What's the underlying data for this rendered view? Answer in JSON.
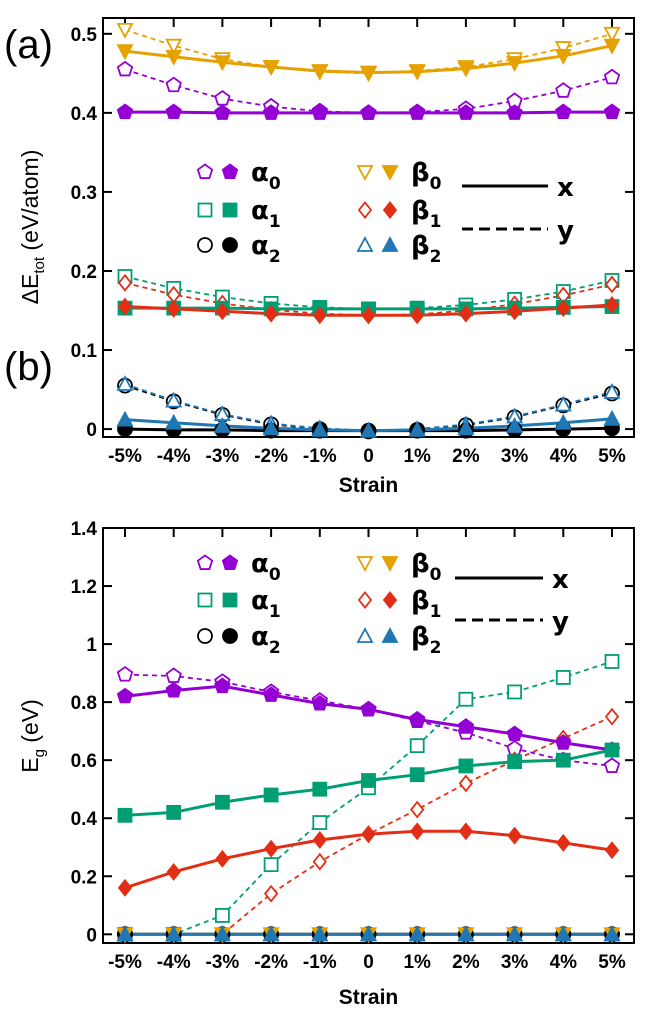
{
  "chart_data": [
    {
      "panel_label": "(a)",
      "type": "line",
      "ylabel_prefix": "ΔE",
      "ylabel_sub": "tot",
      "ylabel_suffix": " (eV/atom)",
      "xlabel": "Strain",
      "categories": [
        "-5%",
        "-4%",
        "-3%",
        "-2%",
        "-1%",
        "0",
        "1%",
        "2%",
        "3%",
        "4%",
        "5%"
      ],
      "ylim": [
        -0.01,
        0.52
      ],
      "yticks": [
        0,
        0.1,
        0.2,
        0.3,
        0.4,
        0.5
      ],
      "grid": false,
      "legend": {
        "entries": [
          {
            "greek": "α",
            "sub": "0"
          },
          {
            "greek": "α",
            "sub": "1"
          },
          {
            "greek": "α",
            "sub": "2"
          },
          {
            "greek": "β",
            "sub": "0"
          },
          {
            "greek": "β",
            "sub": "1"
          },
          {
            "greek": "β",
            "sub": "2"
          }
        ],
        "line_styles": [
          {
            "label": "x",
            "style": "solid"
          },
          {
            "label": "y",
            "style": "dashed"
          }
        ]
      },
      "series": [
        {
          "key": "α0-x",
          "color": "#9400D3",
          "marker": "pentagon",
          "style": "solid",
          "values": [
            0.401,
            0.401,
            0.4,
            0.4,
            0.4,
            0.4,
            0.4,
            0.4,
            0.4,
            0.401,
            0.401
          ]
        },
        {
          "key": "α0-y",
          "color": "#9400D3",
          "marker": "pentagon",
          "style": "dashed",
          "values": [
            0.455,
            0.435,
            0.418,
            0.408,
            0.402,
            0.4,
            0.401,
            0.405,
            0.415,
            0.428,
            0.445
          ]
        },
        {
          "key": "β0-x",
          "color": "#E5A100",
          "marker": "triangle-down",
          "style": "solid",
          "values": [
            0.478,
            0.471,
            0.464,
            0.458,
            0.453,
            0.451,
            0.452,
            0.456,
            0.463,
            0.472,
            0.485
          ]
        },
        {
          "key": "β0-y",
          "color": "#E5A100",
          "marker": "triangle-down",
          "style": "dashed",
          "values": [
            0.505,
            0.485,
            0.468,
            0.458,
            0.452,
            0.45,
            0.453,
            0.458,
            0.468,
            0.482,
            0.5
          ]
        },
        {
          "key": "α1-x",
          "color": "#009E73",
          "marker": "square",
          "style": "solid",
          "values": [
            0.153,
            0.153,
            0.153,
            0.152,
            0.152,
            0.152,
            0.152,
            0.152,
            0.153,
            0.154,
            0.155
          ]
        },
        {
          "key": "α1-y",
          "color": "#009E73",
          "marker": "square",
          "style": "dashed",
          "values": [
            0.193,
            0.178,
            0.167,
            0.159,
            0.154,
            0.152,
            0.153,
            0.157,
            0.164,
            0.174,
            0.188
          ]
        },
        {
          "key": "β1-x",
          "color": "#E32E16",
          "marker": "diamond",
          "style": "solid",
          "values": [
            0.155,
            0.152,
            0.149,
            0.146,
            0.144,
            0.144,
            0.144,
            0.146,
            0.149,
            0.153,
            0.157
          ]
        },
        {
          "key": "β1-y",
          "color": "#E32E16",
          "marker": "diamond",
          "style": "dashed",
          "values": [
            0.185,
            0.17,
            0.159,
            0.151,
            0.146,
            0.144,
            0.145,
            0.15,
            0.158,
            0.169,
            0.183
          ]
        },
        {
          "key": "α2-x",
          "color": "#000000",
          "marker": "circle",
          "style": "solid",
          "values": [
            0.0,
            -0.001,
            -0.001,
            -0.002,
            -0.002,
            -0.002,
            -0.002,
            -0.002,
            -0.001,
            0.0,
            0.001
          ]
        },
        {
          "key": "α2-y",
          "color": "#000000",
          "marker": "circle",
          "style": "dashed",
          "values": [
            0.055,
            0.035,
            0.018,
            0.006,
            0.0,
            -0.003,
            -0.001,
            0.005,
            0.015,
            0.03,
            0.045
          ]
        },
        {
          "key": "β2-x",
          "color": "#1F77B4",
          "marker": "triangle-up",
          "style": "solid",
          "values": [
            0.012,
            0.008,
            0.004,
            0.001,
            -0.001,
            -0.002,
            -0.001,
            0.001,
            0.004,
            0.008,
            0.013
          ]
        },
        {
          "key": "β2-y",
          "color": "#1F77B4",
          "marker": "triangle-up",
          "style": "dashed",
          "values": [
            0.057,
            0.036,
            0.019,
            0.007,
            0.001,
            -0.002,
            0.0,
            0.006,
            0.016,
            0.031,
            0.047
          ]
        }
      ]
    },
    {
      "panel_label": "(b)",
      "type": "line",
      "ylabel_prefix": "E",
      "ylabel_sub": "g",
      "ylabel_suffix": " (eV)",
      "xlabel": "Strain",
      "categories": [
        "-5%",
        "-4%",
        "-3%",
        "-2%",
        "-1%",
        "0",
        "1%",
        "2%",
        "3%",
        "4%",
        "5%"
      ],
      "ylim": [
        -0.03,
        1.4
      ],
      "yticks": [
        0,
        0.2,
        0.4,
        0.6,
        0.8,
        1,
        1.2,
        1.4
      ],
      "grid": false,
      "legend": {
        "entries": [
          {
            "greek": "α",
            "sub": "0"
          },
          {
            "greek": "α",
            "sub": "1"
          },
          {
            "greek": "α",
            "sub": "2"
          },
          {
            "greek": "β",
            "sub": "0"
          },
          {
            "greek": "β",
            "sub": "1"
          },
          {
            "greek": "β",
            "sub": "2"
          }
        ],
        "line_styles": [
          {
            "label": "x",
            "style": "solid"
          },
          {
            "label": "y",
            "style": "dashed"
          }
        ]
      },
      "series": [
        {
          "key": "α0-x",
          "color": "#9400D3",
          "marker": "pentagon",
          "style": "solid",
          "values": [
            0.82,
            0.84,
            0.855,
            0.825,
            0.795,
            0.775,
            0.74,
            0.715,
            0.69,
            0.66,
            0.635
          ]
        },
        {
          "key": "α0-y",
          "color": "#9400D3",
          "marker": "pentagon",
          "style": "dashed",
          "values": [
            0.895,
            0.89,
            0.87,
            0.835,
            0.805,
            0.775,
            0.735,
            0.695,
            0.64,
            0.6,
            0.58
          ]
        },
        {
          "key": "α1-x",
          "color": "#009E73",
          "marker": "square",
          "style": "solid",
          "values": [
            0.41,
            0.42,
            0.455,
            0.48,
            0.5,
            0.53,
            0.55,
            0.58,
            0.595,
            0.6,
            0.635
          ]
        },
        {
          "key": "α1-y",
          "color": "#009E73",
          "marker": "square",
          "style": "dashed",
          "values": [
            0.0,
            0.0,
            0.065,
            0.24,
            0.385,
            0.505,
            0.65,
            0.81,
            0.835,
            0.885,
            0.94
          ]
        },
        {
          "key": "β1-x",
          "color": "#E32E16",
          "marker": "diamond",
          "style": "solid",
          "values": [
            0.16,
            0.215,
            0.26,
            0.295,
            0.325,
            0.345,
            0.355,
            0.355,
            0.34,
            0.315,
            0.29
          ]
        },
        {
          "key": "β1-y",
          "color": "#E32E16",
          "marker": "diamond",
          "style": "dashed",
          "values": [
            0.0,
            0.0,
            0.0,
            0.14,
            0.25,
            0.345,
            0.43,
            0.52,
            0.6,
            0.675,
            0.75
          ]
        },
        {
          "key": "α2-x",
          "color": "#000000",
          "marker": "circle",
          "style": "solid",
          "values": [
            0,
            0,
            0,
            0,
            0,
            0,
            0,
            0,
            0,
            0,
            0
          ]
        },
        {
          "key": "α2-y",
          "color": "#000000",
          "marker": "circle",
          "style": "dashed",
          "values": [
            0,
            0,
            0,
            0,
            0,
            0,
            0,
            0,
            0,
            0,
            0
          ]
        },
        {
          "key": "β0-x",
          "color": "#E5A100",
          "marker": "triangle-down",
          "style": "solid",
          "values": [
            0,
            0,
            0,
            0,
            0,
            0,
            0,
            0,
            0,
            0,
            0
          ]
        },
        {
          "key": "β0-y",
          "color": "#E5A100",
          "marker": "triangle-down",
          "style": "dashed",
          "values": [
            0,
            0,
            0,
            0,
            0,
            0,
            0,
            0,
            0,
            0,
            0
          ]
        },
        {
          "key": "β2-x",
          "color": "#1F77B4",
          "marker": "triangle-up",
          "style": "solid",
          "values": [
            0,
            0,
            0,
            0,
            0,
            0,
            0,
            0,
            0,
            0,
            0
          ]
        },
        {
          "key": "β2-y",
          "color": "#1F77B4",
          "marker": "triangle-up",
          "style": "dashed",
          "values": [
            0,
            0,
            0,
            0,
            0,
            0,
            0,
            0,
            0,
            0,
            0
          ]
        }
      ]
    }
  ]
}
